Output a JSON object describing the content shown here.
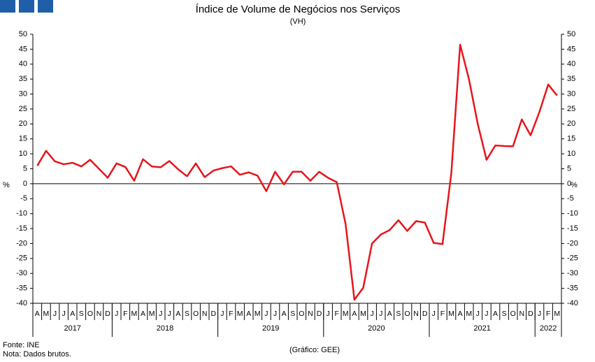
{
  "chart_data": {
    "type": "line",
    "title": "Índice de Volume de Negócios nos Serviços",
    "subtitle": "(VH)",
    "y_label": "%",
    "y2_label": "%",
    "categories": [
      "A",
      "M",
      "J",
      "J",
      "A",
      "S",
      "O",
      "N",
      "D",
      "J",
      "F",
      "M",
      "A",
      "M",
      "J",
      "J",
      "A",
      "S",
      "O",
      "N",
      "D",
      "J",
      "F",
      "M",
      "A",
      "M",
      "J",
      "J",
      "A",
      "S",
      "O",
      "N",
      "D",
      "J",
      "F",
      "M",
      "A",
      "M",
      "J",
      "J",
      "A",
      "S",
      "O",
      "N",
      "D",
      "J",
      "F",
      "M",
      "A",
      "M",
      "J",
      "J",
      "A",
      "S",
      "O",
      "N",
      "D",
      "J",
      "F",
      "M"
    ],
    "years": [
      "2017",
      "2018",
      "2019",
      "2020",
      "2021",
      "2022"
    ],
    "series": [
      {
        "color": "#e8141b",
        "values": [
          6,
          11,
          7.5,
          6.5,
          7,
          5.8,
          8,
          5,
          2,
          6.8,
          5.6,
          1,
          8.2,
          5.8,
          5.5,
          7.6,
          4.8,
          2.5,
          6.8,
          2.2,
          4.4,
          5.2,
          5.8,
          3,
          3.8,
          2.7,
          -2.5,
          4,
          -0.2,
          4,
          4,
          1,
          4,
          2,
          0.5,
          -13.5,
          -38.8,
          -34.8,
          -20,
          -17,
          -15.5,
          -12.2,
          -15.8,
          -12.5,
          -13,
          -19.8,
          -20.2,
          3.5,
          46.5,
          35,
          20,
          8,
          12.8,
          12.6,
          12.5,
          21.5,
          16.2,
          24,
          33.2,
          29.5
        ]
      }
    ],
    "ylim": [
      -40,
      50
    ],
    "yticks": [
      -40,
      -35,
      -30,
      -25,
      -20,
      -15,
      -10,
      -5,
      0,
      5,
      10,
      15,
      20,
      25,
      30,
      35,
      40,
      45,
      50
    ],
    "y2lim": [
      -40,
      50
    ],
    "y2ticks": [
      -40,
      -35,
      -30,
      -25,
      -20,
      -15,
      -10,
      -5,
      0,
      5,
      10,
      15,
      20,
      25,
      30,
      35,
      40,
      45,
      50
    ],
    "source": "Fonte: INE",
    "note": "Nota: Dados brutos.",
    "credit": "(Gráfico: GEE)"
  }
}
